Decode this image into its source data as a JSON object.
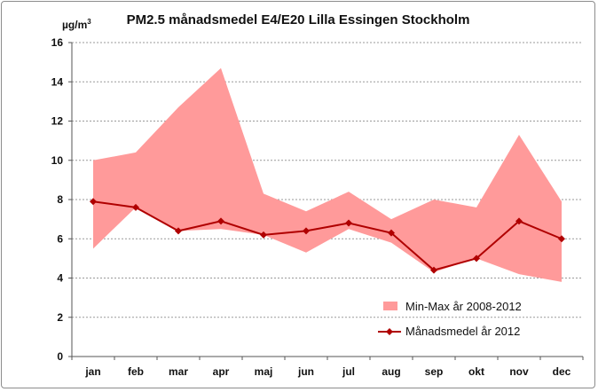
{
  "chart_data": {
    "type": "area",
    "title": "PM2.5 månadsmedel E4/E20 Lilla Essingen Stockholm",
    "ylabel_base": "µg/m",
    "ylabel_sup": "3",
    "categories": [
      "jan",
      "feb",
      "mar",
      "apr",
      "maj",
      "jun",
      "jul",
      "aug",
      "sep",
      "okt",
      "nov",
      "dec"
    ],
    "ylim": [
      0,
      16
    ],
    "yticks": [
      "0",
      "2",
      "4",
      "6",
      "8",
      "10",
      "12",
      "14",
      "16"
    ],
    "grid": true,
    "legend_position": "bottom-right",
    "series": [
      {
        "name": "Min-Max år 2008-2012",
        "kind": "band",
        "color": "#ff9a9a",
        "min": [
          5.5,
          7.6,
          6.4,
          6.5,
          6.2,
          5.3,
          6.5,
          5.8,
          4.3,
          5.0,
          4.2,
          3.8
        ],
        "max": [
          10.0,
          10.4,
          12.7,
          14.7,
          8.3,
          7.4,
          8.4,
          7.0,
          8.0,
          7.6,
          11.3,
          7.9
        ]
      },
      {
        "name": "Månadsmedel år 2012",
        "kind": "line",
        "color": "#b00000",
        "values": [
          7.9,
          7.6,
          6.4,
          6.9,
          6.2,
          6.4,
          6.8,
          6.3,
          4.4,
          5.0,
          6.9,
          6.0
        ]
      }
    ]
  }
}
